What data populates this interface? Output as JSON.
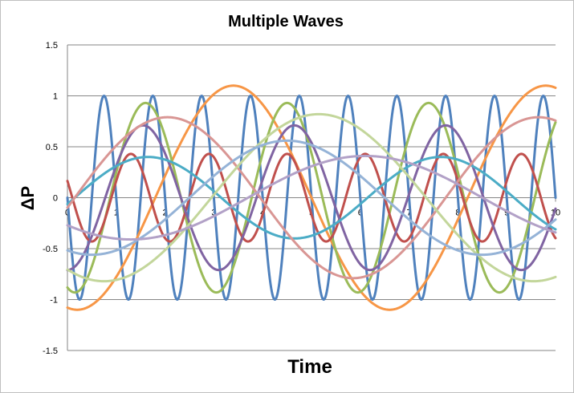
{
  "chart_data": {
    "type": "line",
    "title": "Multiple Waves",
    "xlabel": "Time",
    "ylabel": "ΔP",
    "xlim": [
      0,
      10
    ],
    "ylim": [
      -1.5,
      1.5
    ],
    "x_ticks": [
      "0",
      "1",
      "2",
      "3",
      "4",
      "5",
      "6",
      "7",
      "8",
      "9",
      "10"
    ],
    "y_ticks": [
      "1.5",
      "1",
      "0.5",
      "0",
      "-0.5",
      "-1",
      "-1.5"
    ],
    "y_tick_values": [
      1.5,
      1,
      0.5,
      0,
      -0.5,
      -1,
      -1.5
    ],
    "grid": "horizontal",
    "legend": "none",
    "series": [
      {
        "color": "#4f81bd",
        "amplitude": 1.0,
        "period": 1.0,
        "peak_at": 0.75
      },
      {
        "color": "#f79646",
        "amplitude": 1.1,
        "period": 6.4,
        "peak_at": 3.4
      },
      {
        "color": "#9bbb59",
        "amplitude": 0.93,
        "period": 2.9,
        "peak_at": 1.6
      },
      {
        "color": "#c0504d",
        "amplitude": 0.43,
        "period": 1.6,
        "peak_at": 1.3
      },
      {
        "color": "#8064a2",
        "amplitude": 0.71,
        "period": 3.1,
        "peak_at": 1.55
      },
      {
        "color": "#4bacc6",
        "amplitude": 0.4,
        "period": 6.0,
        "peak_at": 1.65
      },
      {
        "color": "#d99694",
        "amplitude": 0.79,
        "period": 7.6,
        "peak_at": 2.05
      },
      {
        "color": "#c3d69b",
        "amplitude": 0.82,
        "period": 8.8,
        "peak_at": 5.15
      },
      {
        "color": "#95b3d7",
        "amplitude": 0.56,
        "period": 8.0,
        "peak_at": 4.5
      },
      {
        "color": "#b2a1c7",
        "amplitude": 0.41,
        "period": 9.6,
        "peak_at": 6.1
      }
    ]
  }
}
